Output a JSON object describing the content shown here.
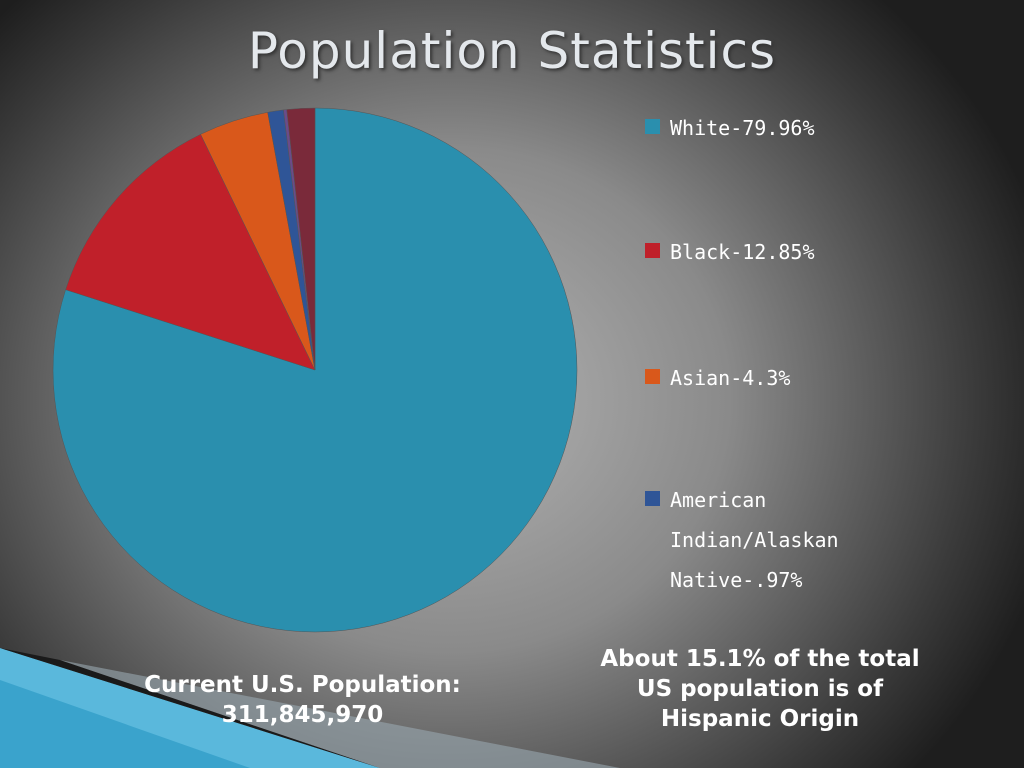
{
  "chart_data": {
    "type": "pie",
    "title": "Population Statistics",
    "categories": [
      "White-79.96%",
      "Black-12.85%",
      "Asian-4.3%",
      "American Indian/Alaskan Native-.97%",
      null,
      null
    ],
    "values": [
      79.96,
      12.85,
      4.3,
      0.97,
      0.2,
      1.72
    ],
    "colors": [
      "#2a8fae",
      "#c0202a",
      "#d9581b",
      "#2f5597",
      "#6b4b8a",
      "#7a2a3a"
    ],
    "annotations": [
      {
        "lines": [
          "Current U.S. Population:",
          "311,845,970"
        ]
      },
      {
        "lines": [
          "About 15.1% of the total",
          "US population is of",
          "Hispanic Origin"
        ]
      }
    ]
  }
}
